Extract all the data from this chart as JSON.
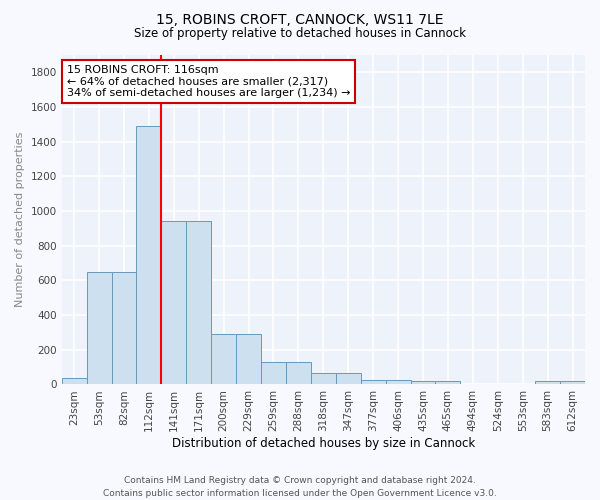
{
  "title": "15, ROBINS CROFT, CANNOCK, WS11 7LE",
  "subtitle": "Size of property relative to detached houses in Cannock",
  "xlabel": "Distribution of detached houses by size in Cannock",
  "ylabel": "Number of detached properties",
  "categories": [
    "23sqm",
    "53sqm",
    "82sqm",
    "112sqm",
    "141sqm",
    "171sqm",
    "200sqm",
    "229sqm",
    "259sqm",
    "288sqm",
    "318sqm",
    "347sqm",
    "377sqm",
    "406sqm",
    "435sqm",
    "465sqm",
    "494sqm",
    "524sqm",
    "553sqm",
    "583sqm",
    "612sqm"
  ],
  "values": [
    35,
    650,
    650,
    1490,
    940,
    940,
    290,
    290,
    130,
    130,
    65,
    65,
    25,
    25,
    20,
    20,
    0,
    0,
    0,
    20,
    20
  ],
  "bar_color": "#cce0f0",
  "bar_edge_color": "#6699bb",
  "red_line_index": 3,
  "annotation_line1": "15 ROBINS CROFT: 116sqm",
  "annotation_line2": "← 64% of detached houses are smaller (2,317)",
  "annotation_line3": "34% of semi-detached houses are larger (1,234) →",
  "annotation_box_facecolor": "#ffffff",
  "annotation_box_edgecolor": "#cc0000",
  "footer": "Contains HM Land Registry data © Crown copyright and database right 2024.\nContains public sector information licensed under the Open Government Licence v3.0.",
  "fig_facecolor": "#f8f8ff",
  "ax_facecolor": "#eef2fa",
  "grid_color": "#ffffff",
  "ylim": [
    0,
    1900
  ],
  "yticks": [
    0,
    200,
    400,
    600,
    800,
    1000,
    1200,
    1400,
    1600,
    1800
  ],
  "title_fontsize": 10,
  "subtitle_fontsize": 8.5,
  "ylabel_fontsize": 8,
  "xlabel_fontsize": 8.5,
  "tick_fontsize": 7.5,
  "footer_fontsize": 6.5,
  "annotation_fontsize": 8
}
